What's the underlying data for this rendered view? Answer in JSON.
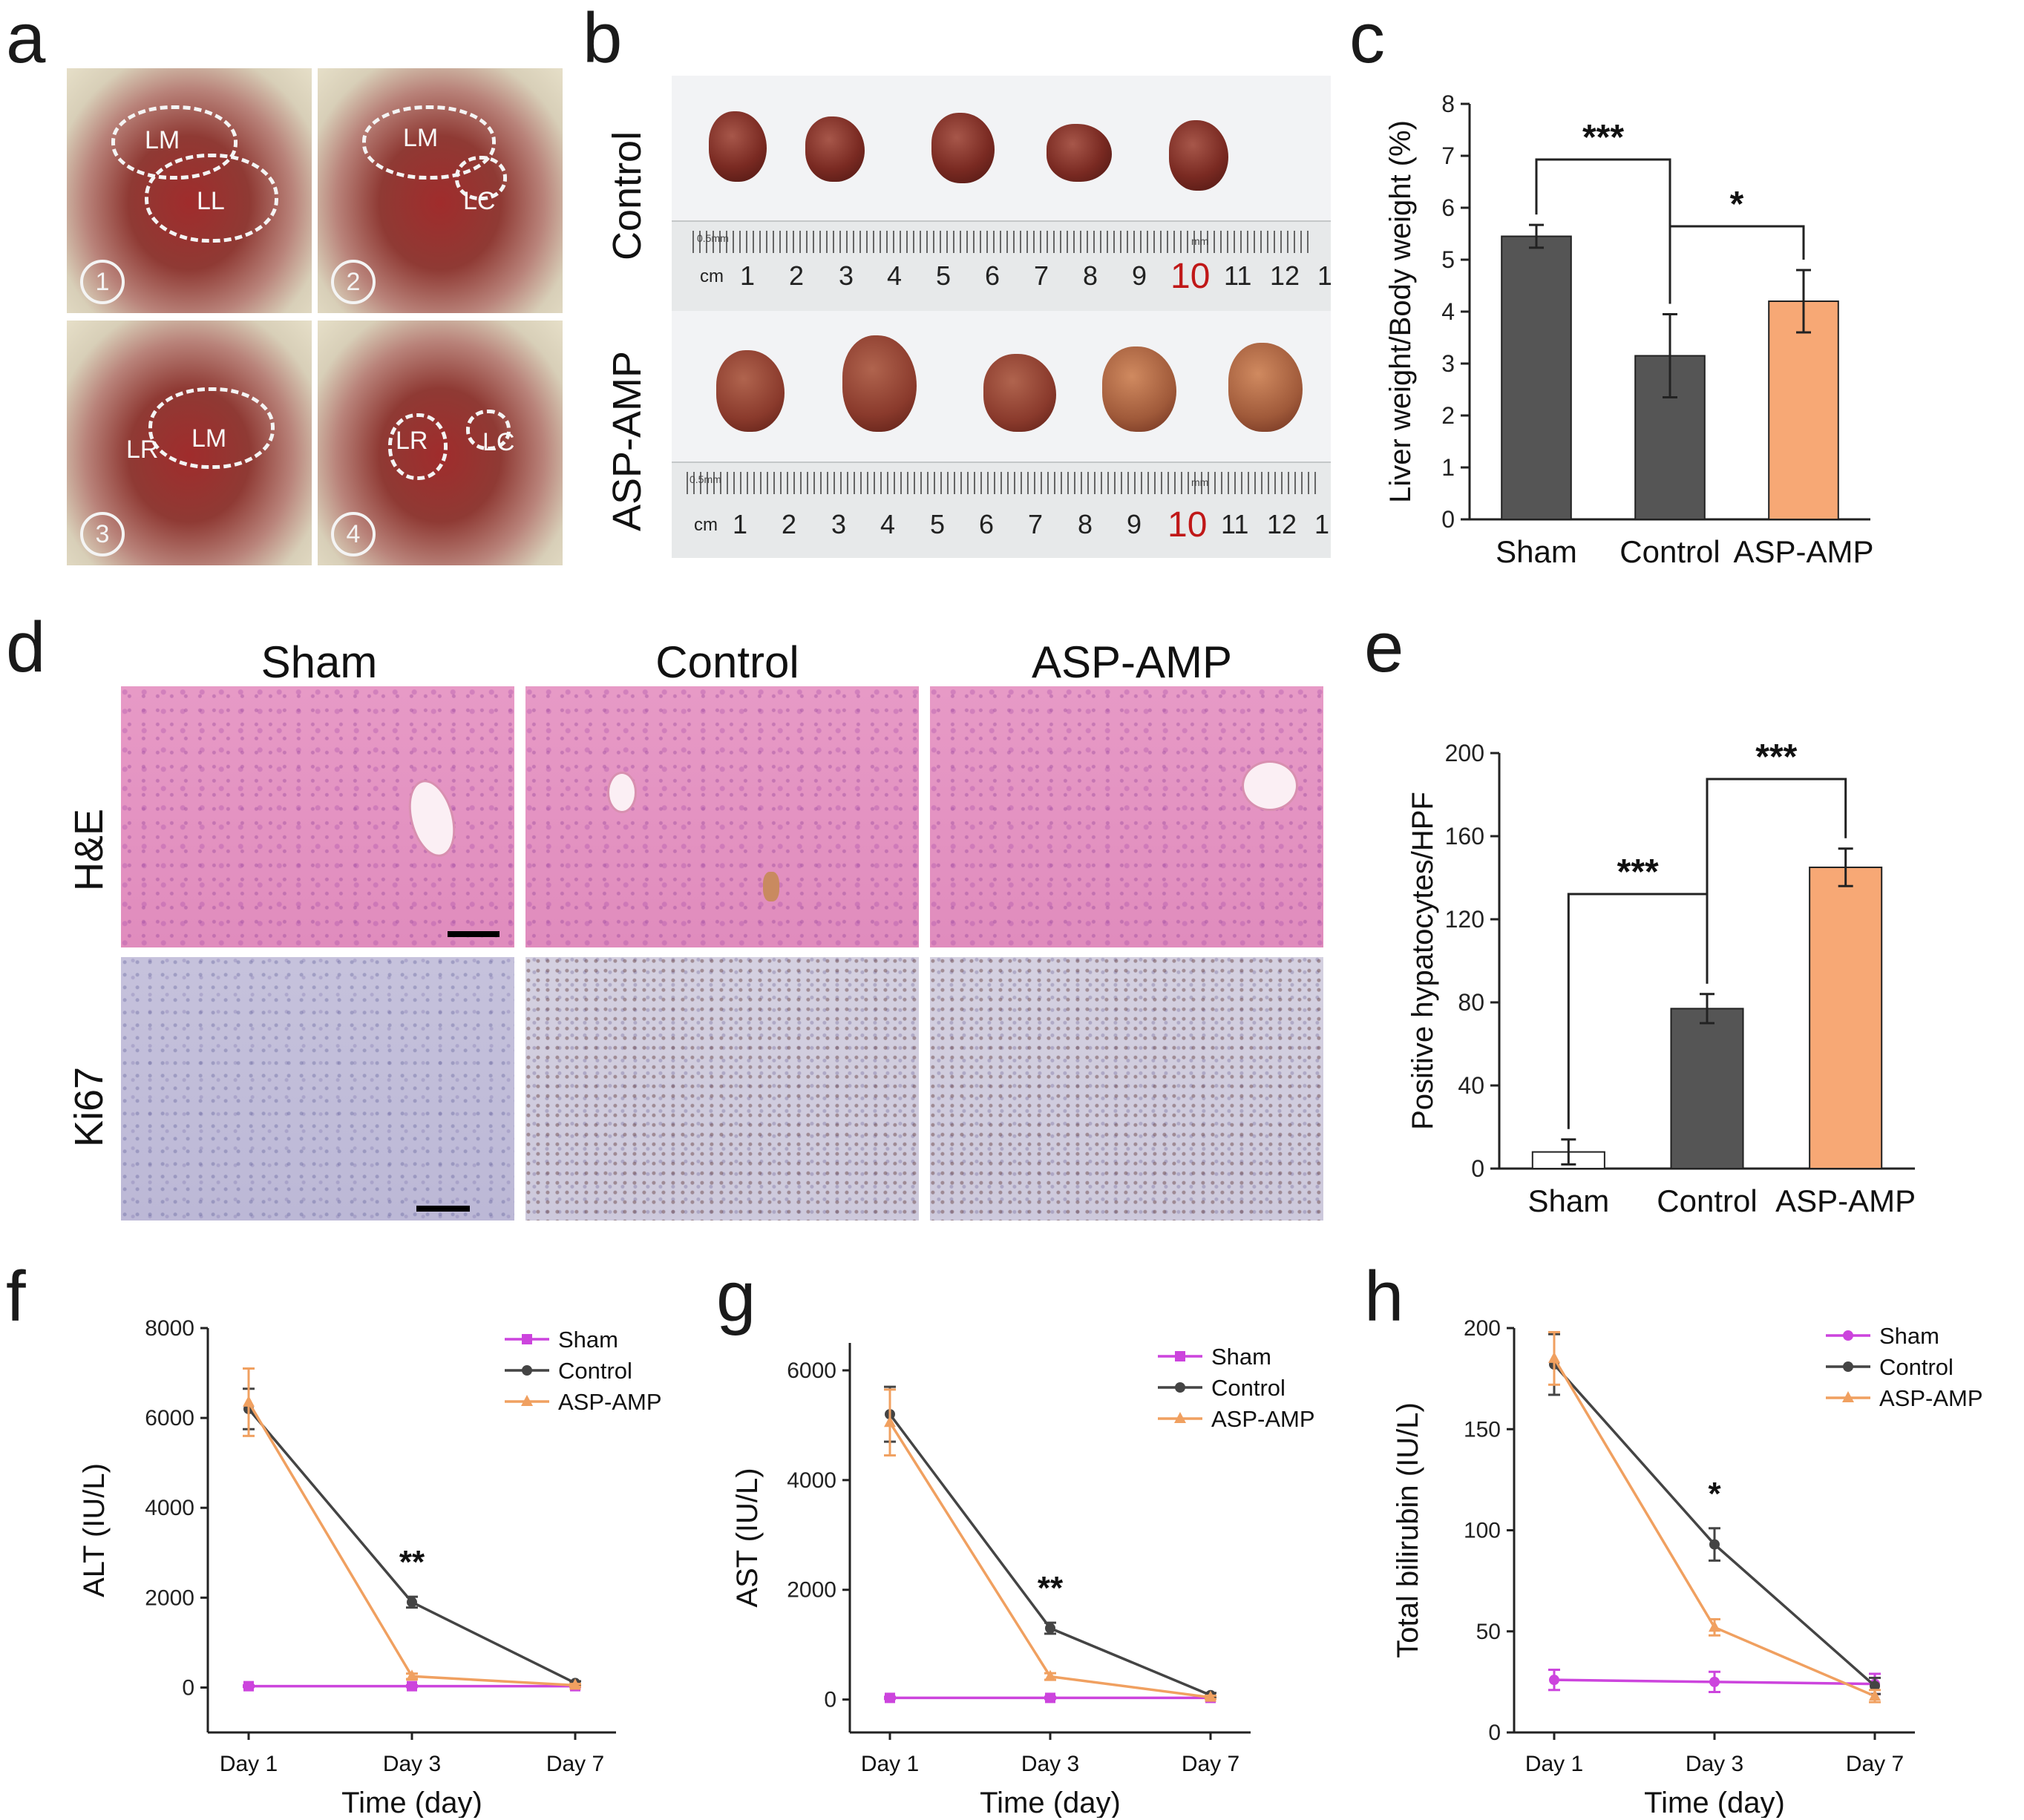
{
  "panel_labels": [
    "a",
    "b",
    "c",
    "d",
    "e",
    "f",
    "g",
    "h"
  ],
  "panel_a": {
    "photo_1": {
      "labels": [
        "LM",
        "LL"
      ],
      "number": "1"
    },
    "photo_2": {
      "labels": [
        "LM",
        "LC"
      ],
      "number": "2"
    },
    "photo_3": {
      "labels": [
        "LR",
        "LM"
      ],
      "number": "3"
    },
    "photo_4": {
      "labels": [
        "LR",
        "LC"
      ],
      "number": "4"
    }
  },
  "panel_b": {
    "rows": [
      "Control",
      "ASP-AMP"
    ],
    "ruler_unit": "cm",
    "ruler_small": "0.5mm",
    "ruler_mm": "mm",
    "ruler_numbers": [
      "1",
      "2",
      "3",
      "4",
      "5",
      "6",
      "7",
      "8",
      "9",
      "10",
      "11",
      "12",
      "1"
    ]
  },
  "panel_d": {
    "columns": [
      "Sham",
      "Control",
      "ASP-AMP"
    ],
    "rows": [
      "H&E",
      "Ki67"
    ]
  },
  "colors": {
    "dark": "#555555",
    "orange": "#f7a875",
    "sham_line": "#cc44dd",
    "control_line": "#444444",
    "asp_line": "#f0a060",
    "axis": "#222222"
  },
  "chart_data": [
    {
      "id": "c",
      "type": "bar",
      "categories": [
        "Sham",
        "Control",
        "ASP-AMP"
      ],
      "values": [
        5.45,
        3.15,
        4.2
      ],
      "errors": [
        0.22,
        0.8,
        0.6
      ],
      "ylabel": "Liver weight/Body weight (%)",
      "ylim": [
        0,
        8
      ],
      "yticks": [
        "0",
        "1",
        "2",
        "3",
        "4",
        "5",
        "6",
        "7",
        "8"
      ],
      "significance": [
        {
          "from": 0,
          "to": 1,
          "label": "***"
        },
        {
          "from": 1,
          "to": 2,
          "label": "*"
        }
      ]
    },
    {
      "id": "e",
      "type": "bar",
      "categories": [
        "Sham",
        "Control",
        "ASP-AMP"
      ],
      "values": [
        8,
        77,
        145
      ],
      "errors": [
        6,
        7,
        9
      ],
      "ylabel": "Positive hypatocytes/HPF",
      "ylim": [
        0,
        200
      ],
      "yticks": [
        "0",
        "40",
        "80",
        "120",
        "160",
        "200"
      ],
      "significance": [
        {
          "from": 0,
          "to": 1,
          "label": "***"
        },
        {
          "from": 1,
          "to": 2,
          "label": "***"
        }
      ]
    },
    {
      "id": "f",
      "type": "line",
      "x": [
        "Day 1",
        "Day 3",
        "Day 7"
      ],
      "xlabel": "Time (day)",
      "ylabel": "ALT (IU/L)",
      "ylim": [
        -1000,
        8000
      ],
      "yticks": [
        "0",
        "2000",
        "4000",
        "6000",
        "8000"
      ],
      "annotation": {
        "x_index": 1,
        "label": "**"
      },
      "series": [
        {
          "name": "Sham",
          "values": [
            30,
            30,
            30
          ],
          "errors": [
            20,
            20,
            20
          ],
          "marker": "square"
        },
        {
          "name": "Control",
          "values": [
            6200,
            1900,
            100
          ],
          "errors": [
            450,
            120,
            40
          ],
          "marker": "circle"
        },
        {
          "name": "ASP-AMP",
          "values": [
            6350,
            250,
            50
          ],
          "errors": [
            750,
            60,
            30
          ],
          "marker": "triangle"
        }
      ]
    },
    {
      "id": "g",
      "type": "line",
      "x": [
        "Day 1",
        "Day 3",
        "Day 7"
      ],
      "xlabel": "Time (day)",
      "ylabel": "AST (IU/L)",
      "ylim": [
        -600,
        6500
      ],
      "yticks": [
        "0",
        "2000",
        "4000",
        "6000"
      ],
      "annotation": {
        "x_index": 1,
        "label": "**"
      },
      "series": [
        {
          "name": "Sham",
          "values": [
            30,
            30,
            30
          ],
          "errors": [
            20,
            20,
            20
          ],
          "marker": "square"
        },
        {
          "name": "Control",
          "values": [
            5200,
            1300,
            80
          ],
          "errors": [
            500,
            100,
            40
          ],
          "marker": "circle"
        },
        {
          "name": "ASP-AMP",
          "values": [
            5050,
            420,
            40
          ],
          "errors": [
            600,
            60,
            30
          ],
          "marker": "triangle"
        }
      ]
    },
    {
      "id": "h",
      "type": "line",
      "x": [
        "Day 1",
        "Day 3",
        "Day 7"
      ],
      "xlabel": "Time (day)",
      "ylabel": "Total bilirubin (IU/L)",
      "ylim": [
        0,
        200
      ],
      "yticks": [
        "0",
        "50",
        "100",
        "150",
        "200"
      ],
      "annotation": {
        "x_index": 1,
        "label": "*"
      },
      "series": [
        {
          "name": "Sham",
          "values": [
            26,
            25,
            24
          ],
          "errors": [
            5,
            5,
            5
          ],
          "marker": "circle"
        },
        {
          "name": "Control",
          "values": [
            182,
            93,
            23
          ],
          "errors": [
            15,
            8,
            4
          ],
          "marker": "circle"
        },
        {
          "name": "ASP-AMP",
          "values": [
            185,
            52,
            18
          ],
          "errors": [
            13,
            4,
            3
          ],
          "marker": "triangle"
        }
      ]
    }
  ]
}
